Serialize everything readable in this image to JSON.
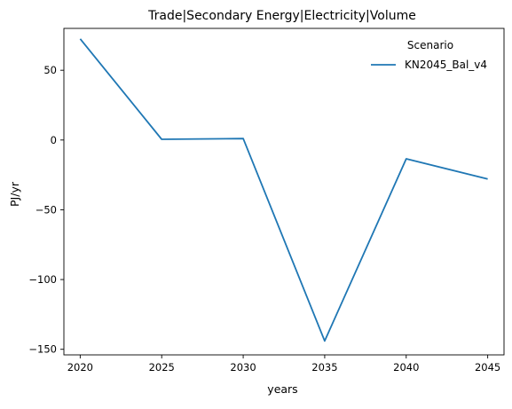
{
  "chart_data": {
    "type": "line",
    "title": "Trade|Secondary Energy|Electricity|Volume",
    "xlabel": "years",
    "ylabel": "PJ/yr",
    "x": [
      2020,
      2025,
      2030,
      2035,
      2040,
      2045
    ],
    "x_ticks": [
      "2020",
      "2025",
      "2030",
      "2035",
      "2040",
      "2045"
    ],
    "y_ticks": [
      50,
      0,
      -50,
      -100,
      -150
    ],
    "y_tick_labels": [
      "50",
      "0",
      "−50",
      "−100",
      "−150"
    ],
    "xlim": [
      2019,
      2046
    ],
    "ylim": [
      -154,
      80
    ],
    "series": [
      {
        "name": "KN2045_Bal_v4",
        "color": "#1f77b4",
        "values": [
          72.5,
          0.5,
          1.0,
          -144.0,
          -13.5,
          -28.0
        ]
      }
    ],
    "legend": {
      "title": "Scenario",
      "placement": "top-right"
    },
    "grid": false
  }
}
